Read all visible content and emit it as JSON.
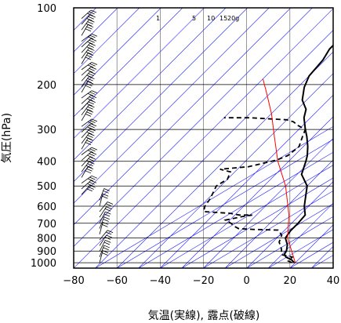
{
  "chart_data": {
    "type": "line",
    "xlabel": "気温(実線), 露点(破線)",
    "ylabel": "気圧(hPa)",
    "xlim": [
      -80,
      40
    ],
    "ylim": [
      1050,
      100
    ],
    "y_scale": "log",
    "grid": true,
    "x_ticks": [
      "−80",
      "−60",
      "−40",
      "−20",
      "0",
      "20",
      "40"
    ],
    "y_ticks": [
      "100",
      "200",
      "300",
      "400",
      "500",
      "600",
      "700",
      "800",
      "900",
      "1000"
    ],
    "mixing_ratio_labels": [
      "1",
      "5",
      "10",
      "15",
      "20g"
    ],
    "colors": {
      "temperature": "#000000",
      "dewpoint": "#000000",
      "parcel": "#ff0000",
      "isotherm": "#1a1aff",
      "isobar": "#000000",
      "wind": "#000000"
    },
    "series": [
      {
        "style": "solid",
        "points": [
          {
            "t": 19.5,
            "p": 1000
          },
          {
            "t": 17,
            "p": 975
          },
          {
            "t": 13,
            "p": 950
          },
          {
            "t": 11,
            "p": 925
          },
          {
            "t": 10.5,
            "p": 900
          },
          {
            "t": 8,
            "p": 850
          },
          {
            "t": 4,
            "p": 800
          },
          {
            "t": 3,
            "p": 750
          },
          {
            "t": 3,
            "p": 700
          },
          {
            "t": 2.5,
            "p": 650
          },
          {
            "t": -2,
            "p": 600
          },
          {
            "t": -10,
            "p": 500
          },
          {
            "t": -18,
            "p": 450
          },
          {
            "t": -22,
            "p": 400
          },
          {
            "t": -24,
            "p": 380
          },
          {
            "t": -28,
            "p": 350
          },
          {
            "t": -33,
            "p": 320
          },
          {
            "t": -37,
            "p": 300
          },
          {
            "t": -43,
            "p": 270
          },
          {
            "t": -46,
            "p": 250
          },
          {
            "t": -52,
            "p": 230
          },
          {
            "t": -57,
            "p": 205
          },
          {
            "t": -60,
            "p": 185
          },
          {
            "t": -61,
            "p": 160
          },
          {
            "t": -63,
            "p": 145
          },
          {
            "t": -63,
            "p": 135
          },
          {
            "t": -64,
            "p": 125
          },
          {
            "t": -67,
            "p": 115
          },
          {
            "t": -68,
            "p": 100
          }
        ]
      },
      {
        "style": "dashed",
        "points": [
          {
            "t": 18.5,
            "p": 1000
          },
          {
            "t": 16,
            "p": 985
          },
          {
            "t": 16,
            "p": 950
          },
          {
            "t": 10,
            "p": 930
          },
          {
            "t": 7,
            "p": 880
          },
          {
            "t": 3,
            "p": 830
          },
          {
            "t": 1,
            "p": 780
          },
          {
            "t": -3,
            "p": 745
          },
          {
            "t": -15,
            "p": 740
          },
          {
            "t": -22,
            "p": 735
          },
          {
            "t": -25,
            "p": 720
          },
          {
            "t": -28,
            "p": 700
          },
          {
            "t": -32,
            "p": 680
          },
          {
            "t": -26,
            "p": 660
          },
          {
            "t": -22,
            "p": 650
          },
          {
            "t": -28,
            "p": 650
          },
          {
            "t": -33,
            "p": 640
          },
          {
            "t": -46,
            "p": 630
          },
          {
            "t": -48,
            "p": 600
          },
          {
            "t": -49,
            "p": 560
          },
          {
            "t": -51,
            "p": 520
          },
          {
            "t": -52,
            "p": 500
          },
          {
            "t": -50,
            "p": 470
          },
          {
            "t": -52,
            "p": 440
          },
          {
            "t": -58,
            "p": 430
          },
          {
            "t": -46,
            "p": 420
          },
          {
            "t": -40,
            "p": 405
          },
          {
            "t": -36,
            "p": 395
          },
          {
            "t": -33,
            "p": 380
          },
          {
            "t": -32,
            "p": 350
          },
          {
            "t": -35,
            "p": 320
          },
          {
            "t": -37,
            "p": 300
          },
          {
            "t": -42,
            "p": 290
          },
          {
            "t": -46,
            "p": 280
          },
          {
            "t": -50,
            "p": 275
          },
          {
            "t": -68,
            "p": 270
          },
          {
            "t": -80,
            "p": 270
          }
        ]
      },
      {
        "style": "parcel",
        "points": [
          {
            "t": 20,
            "p": 1000
          },
          {
            "t": 5,
            "p": 800
          },
          {
            "t": -5,
            "p": 650
          },
          {
            "t": -20,
            "p": 500
          },
          {
            "t": -35,
            "p": 400
          },
          {
            "t": -48,
            "p": 320
          },
          {
            "t": -60,
            "p": 260
          },
          {
            "t": -72,
            "p": 215
          },
          {
            "t": -80,
            "p": 190
          }
        ]
      }
    ]
  }
}
